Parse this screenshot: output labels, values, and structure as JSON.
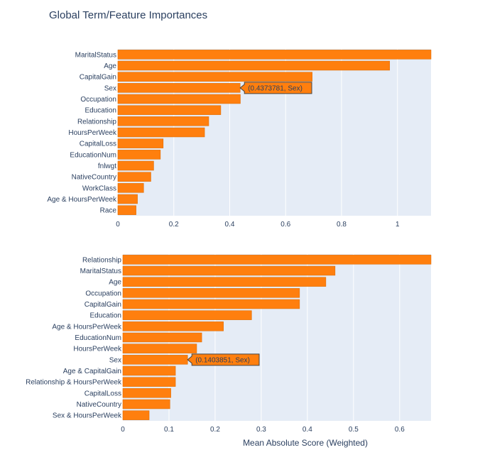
{
  "title": "Global Term/Feature Importances",
  "colors": {
    "bar": "#ff7f0e",
    "bar_edge": "#e06c00",
    "plot_bg": "#e5ecf6",
    "grid": "#ffffff",
    "text": "#2a3f5f",
    "hover_bg": "#ff7f0e"
  },
  "chart_data": [
    {
      "type": "bar",
      "orientation": "horizontal",
      "categories": [
        "MaritalStatus",
        "Age",
        "CapitalGain",
        "Sex",
        "Occupation",
        "Education",
        "Relationship",
        "HoursPerWeek",
        "CapitalLoss",
        "EducationNum",
        "fnlwgt",
        "NativeCountry",
        "WorkClass",
        "Age & HoursPerWeek",
        "Race"
      ],
      "values": [
        1.12,
        0.972,
        0.695,
        0.4373781,
        0.438,
        0.368,
        0.325,
        0.31,
        0.162,
        0.152,
        0.128,
        0.118,
        0.092,
        0.07,
        0.065
      ],
      "xlim": [
        0,
        1.12
      ],
      "xticks": [
        0,
        0.2,
        0.4,
        0.6,
        0.8,
        1
      ],
      "xtick_labels": [
        "0",
        "0.2",
        "0.4",
        "0.6",
        "0.8",
        "1"
      ],
      "xlabel": "",
      "hover": {
        "category_index": 3,
        "text": "(0.4373781, Sex)"
      }
    },
    {
      "type": "bar",
      "orientation": "horizontal",
      "categories": [
        "Relationship",
        "MaritalStatus",
        "Age",
        "Occupation",
        "CapitalGain",
        "Education",
        "Age & HoursPerWeek",
        "EducationNum",
        "HoursPerWeek",
        "Sex",
        "Age & CapitalGain",
        "Relationship & HoursPerWeek",
        "CapitalLoss",
        "NativeCountry",
        "Sex & HoursPerWeek"
      ],
      "values": [
        0.668,
        0.46,
        0.44,
        0.383,
        0.383,
        0.279,
        0.218,
        0.171,
        0.16,
        0.1403851,
        0.114,
        0.114,
        0.104,
        0.102,
        0.057
      ],
      "xlim": [
        0,
        0.668
      ],
      "xticks": [
        0,
        0.1,
        0.2,
        0.3,
        0.4,
        0.5,
        0.6
      ],
      "xtick_labels": [
        "0",
        "0.1",
        "0.2",
        "0.3",
        "0.4",
        "0.5",
        "0.6"
      ],
      "xlabel": "Mean Absolute Score (Weighted)",
      "hover": {
        "category_index": 9,
        "text": "(0.1403851, Sex)"
      }
    }
  ]
}
